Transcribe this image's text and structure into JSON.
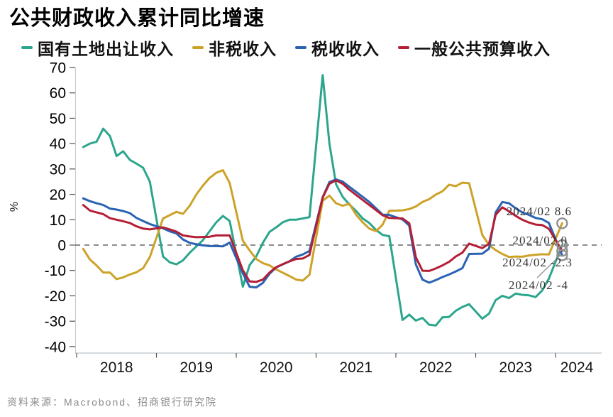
{
  "title": "公共财政收入累计同比增速",
  "legend": [
    {
      "label": "国有土地出让收入",
      "color": "#2CA58D"
    },
    {
      "label": "非税收入",
      "color": "#CDA228"
    },
    {
      "label": "税收收入",
      "color": "#2A63B2"
    },
    {
      "label": "一般公共预算收入",
      "color": "#B41F36"
    }
  ],
  "source": "资料来源：Macrobond、招商银行研究院",
  "chart_data": {
    "type": "line",
    "title": "公共财政收入累计同比增速",
    "xlabel": "",
    "ylabel": "%",
    "ylim": [
      -40,
      70
    ],
    "yticks": [
      70,
      60,
      50,
      40,
      30,
      20,
      10,
      0,
      -10,
      -20,
      -30,
      -40
    ],
    "xticks": [
      2018,
      2019,
      2020,
      2021,
      2022,
      2023,
      2024
    ],
    "grid": "zero-line-dashed-only",
    "legend_position": "top",
    "x_unit": "decimal_year_monthly_cumulative_yoy_pct",
    "x": [
      2018.083,
      2018.167,
      2018.25,
      2018.333,
      2018.417,
      2018.5,
      2018.583,
      2018.667,
      2018.75,
      2018.833,
      2018.917,
      2019.083,
      2019.167,
      2019.25,
      2019.333,
      2019.417,
      2019.5,
      2019.583,
      2019.667,
      2019.75,
      2019.833,
      2019.917,
      2020.083,
      2020.167,
      2020.25,
      2020.333,
      2020.417,
      2020.5,
      2020.583,
      2020.667,
      2020.75,
      2020.833,
      2020.917,
      2021.083,
      2021.167,
      2021.25,
      2021.333,
      2021.417,
      2021.5,
      2021.583,
      2021.667,
      2021.75,
      2021.833,
      2021.917,
      2022.083,
      2022.167,
      2022.25,
      2022.333,
      2022.417,
      2022.5,
      2022.583,
      2022.667,
      2022.75,
      2022.833,
      2022.917,
      2023.083,
      2023.167,
      2023.25,
      2023.333,
      2023.417,
      2023.5,
      2023.583,
      2023.667,
      2023.75,
      2023.833,
      2023.917,
      2024.083
    ],
    "series": [
      {
        "name": "国有土地出让收入",
        "key": "land",
        "color": "#2CA58D",
        "values": [
          38.6,
          40,
          40.7,
          45.9,
          43,
          35.1,
          37,
          33.6,
          32.1,
          30.5,
          25,
          -4.5,
          -6.8,
          -7.6,
          -6,
          -3,
          -0.5,
          2,
          5.5,
          9,
          11.5,
          9.5,
          -16.4,
          -7.9,
          -4.5,
          0.9,
          5.2,
          7,
          9,
          10,
          10,
          10.5,
          11,
          67,
          40,
          24,
          19,
          16,
          13.5,
          10.5,
          8.7,
          6,
          4,
          3.5,
          -29.5,
          -27.4,
          -29.8,
          -28.7,
          -31.4,
          -31.7,
          -28.5,
          -28.3,
          -25.9,
          -24.4,
          -23.3,
          -29,
          -27,
          -21.7,
          -20,
          -20.9,
          -19.1,
          -19.6,
          -19.8,
          -20.5,
          -17.9,
          -13.2,
          0
        ]
      },
      {
        "name": "非税收入",
        "key": "nontax",
        "color": "#CDA228",
        "values": [
          -1.5,
          -5.7,
          -8,
          -10.8,
          -10.8,
          -13.4,
          -12.7,
          -11.6,
          -10.7,
          -9.1,
          -4.7,
          10.5,
          11.8,
          13.1,
          12.3,
          15.5,
          20,
          23.5,
          26.5,
          28.5,
          29.5,
          24.5,
          1.7,
          -2.1,
          -5.5,
          -7.1,
          -8,
          -9.6,
          -10.9,
          -12.2,
          -13.6,
          -14,
          -11.7,
          17.5,
          19.5,
          16.5,
          15.5,
          16.3,
          12,
          9,
          6.5,
          5.5,
          8,
          13.5,
          13.7,
          14.2,
          15.2,
          17,
          18.1,
          19.9,
          21.2,
          23.8,
          23.2,
          24.6,
          24.4,
          4,
          0,
          -2,
          -3.5,
          -4.7,
          -4.5,
          -4.6,
          -4.1,
          -3.8,
          -3.6,
          -3.7,
          8.6
        ]
      },
      {
        "name": "税收收入",
        "key": "tax",
        "color": "#2A63B2",
        "values": [
          18.4,
          17.3,
          16.5,
          15.8,
          14.4,
          14,
          13.4,
          12.6,
          10.7,
          9.5,
          8.3,
          6.6,
          5.4,
          4.6,
          2.2,
          0.9,
          0.3,
          -0.1,
          -0.4,
          -0.4,
          -0.5,
          1,
          -11.2,
          -16.4,
          -16.7,
          -14.9,
          -11.3,
          -8.8,
          -7.6,
          -6.4,
          -4.6,
          -3.7,
          -2.3,
          18.9,
          24.8,
          25.9,
          25,
          23,
          21,
          19,
          17,
          14.5,
          12,
          11.9,
          10.1,
          7.7,
          -7.6,
          -13.6,
          -14.8,
          -13.8,
          -12.6,
          -11.6,
          -10.4,
          -9.1,
          -3.5,
          -3.4,
          -1.4,
          12.9,
          17,
          16.5,
          14.5,
          12.9,
          11.9,
          10.7,
          10.2,
          8.7,
          -4
        ]
      },
      {
        "name": "一般公共预算收入",
        "key": "budget",
        "color": "#B41F36",
        "values": [
          15.8,
          13.6,
          12.9,
          12.2,
          10.6,
          10,
          9.4,
          8.7,
          7.4,
          6.5,
          6.2,
          7,
          6.2,
          5.3,
          3.8,
          3.4,
          3.1,
          3.2,
          3.3,
          3.8,
          3.8,
          3.8,
          -9.9,
          -14.3,
          -14.5,
          -13.6,
          -10.8,
          -8.7,
          -7.5,
          -6.4,
          -5.5,
          -5.3,
          -3.9,
          18.7,
          24.2,
          25.5,
          24.2,
          21.8,
          19.8,
          17.8,
          15.8,
          13.8,
          11.8,
          10.7,
          10.5,
          8.6,
          -4.8,
          -10.1,
          -10.2,
          -9.2,
          -8,
          -6.6,
          -4.5,
          -3,
          0.6,
          -1.2,
          0.5,
          11.9,
          14.9,
          13.3,
          11.5,
          10,
          8.9,
          8.1,
          7.9,
          6.4,
          -2.3
        ]
      }
    ],
    "end_labels": [
      {
        "text": "2024/02 8.6",
        "value": 8.6,
        "series": "非税收入"
      },
      {
        "text": "2024/02 0",
        "value": 0,
        "series": "国有土地出让收入"
      },
      {
        "text": "2024/02 -2.3",
        "value": -2.3,
        "series": "一般公共预算收入"
      },
      {
        "text": "2024/02 -4",
        "value": -4,
        "series": "税收收入"
      }
    ],
    "marker_color": "#8F8F8F",
    "zero_line_color": "#666666",
    "axis_color": "#C8CDD2",
    "tick_color": "#555555"
  }
}
